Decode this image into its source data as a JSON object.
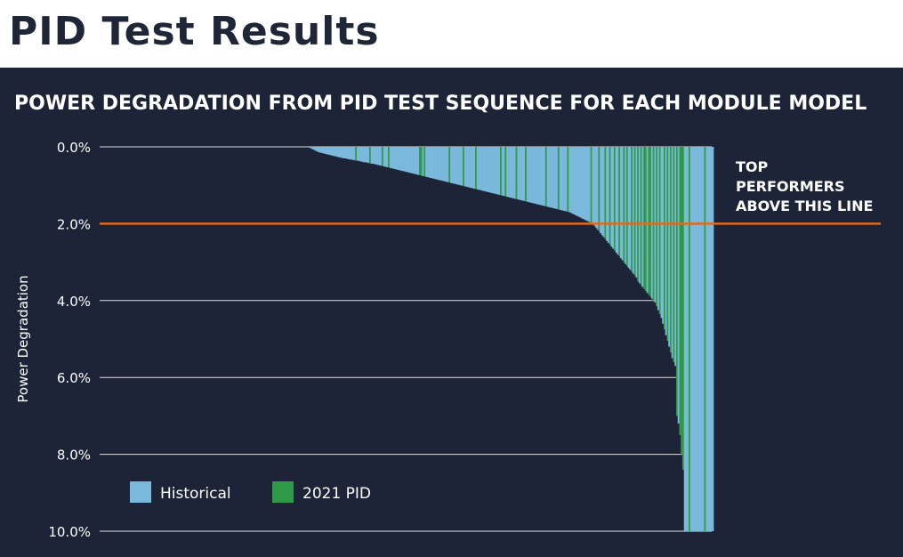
{
  "page_title": "PID Test Results",
  "colors": {
    "background": "#1d2438",
    "historical": "#7ab8dc",
    "pid2021": "#2f9a48",
    "threshold": "#e06a1d",
    "grid": "#ffffff",
    "text": "#ffffff"
  },
  "chart_data": {
    "type": "bar",
    "title": "POWER DEGRADATION FROM PID TEST SEQUENCE FOR EACH MODULE MODEL",
    "ylabel": "Power Degradation",
    "xlabel": "",
    "ylim": [
      0,
      10
    ],
    "y_inverted": true,
    "y_ticks": [
      "0.0%",
      "2.0%",
      "4.0%",
      "6.0%",
      "8.0%",
      "10.0%"
    ],
    "legend": {
      "position": "bottom-left",
      "entries": [
        "Historical",
        "2021 PID"
      ]
    },
    "threshold": {
      "value": 2.0,
      "label_lines": [
        "TOP",
        "PERFORMERS",
        "ABOVE THIS LINE"
      ]
    },
    "sorted": "ascending",
    "series": [
      {
        "name": "Historical",
        "color": "#7ab8dc"
      },
      {
        "name": "2021 PID",
        "color": "#2f9a48"
      }
    ],
    "points": [
      [
        0.0,
        0
      ],
      [
        0.0,
        0
      ],
      [
        0.0,
        0
      ],
      [
        0.0,
        0
      ],
      [
        0.0,
        0
      ],
      [
        0.0,
        0
      ],
      [
        0.0,
        0
      ],
      [
        0.0,
        0
      ],
      [
        0.0,
        0
      ],
      [
        0.0,
        0
      ],
      [
        0.0,
        0
      ],
      [
        0.0,
        0
      ],
      [
        0.0,
        0
      ],
      [
        0.0,
        0
      ],
      [
        0.0,
        0
      ],
      [
        0.0,
        0
      ],
      [
        0.0,
        0
      ],
      [
        0.0,
        0
      ],
      [
        0.0,
        0
      ],
      [
        0.0,
        0
      ],
      [
        0.0,
        0
      ],
      [
        0.0,
        0
      ],
      [
        0.0,
        0
      ],
      [
        0.0,
        0
      ],
      [
        0.0,
        0
      ],
      [
        0.0,
        0
      ],
      [
        0.0,
        0
      ],
      [
        0.0,
        0
      ],
      [
        0.0,
        0
      ],
      [
        0.0,
        0
      ],
      [
        0.0,
        0
      ],
      [
        0.0,
        0
      ],
      [
        0.0,
        0
      ],
      [
        0.0,
        0
      ],
      [
        0.0,
        0
      ],
      [
        0.0,
        0
      ],
      [
        0.0,
        0
      ],
      [
        0.0,
        0
      ],
      [
        0.0,
        0
      ],
      [
        0.0,
        0
      ],
      [
        0.0,
        0
      ],
      [
        0.0,
        0
      ],
      [
        0.0,
        0
      ],
      [
        0.0,
        0
      ],
      [
        0.0,
        0
      ],
      [
        0.0,
        0
      ],
      [
        0.0,
        0
      ],
      [
        0.0,
        0
      ],
      [
        0.0,
        0
      ],
      [
        0.0,
        0
      ],
      [
        0.0,
        0
      ],
      [
        0.0,
        0
      ],
      [
        0.0,
        0
      ],
      [
        0.0,
        0
      ],
      [
        0.0,
        0
      ],
      [
        0.0,
        0
      ],
      [
        0.0,
        0
      ],
      [
        0.0,
        0
      ],
      [
        0.0,
        0
      ],
      [
        0.0,
        0
      ],
      [
        0.0,
        0
      ],
      [
        0.0,
        0
      ],
      [
        0.0,
        0
      ],
      [
        0.0,
        0
      ],
      [
        0.0,
        0
      ],
      [
        0.0,
        0
      ],
      [
        0.0,
        0
      ],
      [
        0.0,
        0
      ],
      [
        0.0,
        0
      ],
      [
        0.0,
        0
      ],
      [
        0.0,
        0
      ],
      [
        0.0,
        0
      ],
      [
        0.0,
        0
      ],
      [
        0.0,
        0
      ],
      [
        0.0,
        0
      ],
      [
        0.0,
        0
      ],
      [
        0.0,
        0
      ],
      [
        0.0,
        0
      ],
      [
        0.0,
        0
      ],
      [
        0.0,
        0
      ],
      [
        0.0,
        0
      ],
      [
        0.0,
        0
      ],
      [
        0.0,
        0
      ],
      [
        0.0,
        0
      ],
      [
        0.0,
        0
      ],
      [
        0.0,
        0
      ],
      [
        0.0,
        0
      ],
      [
        0.0,
        0
      ],
      [
        0.0,
        0
      ],
      [
        0.0,
        0
      ],
      [
        0.0,
        0
      ],
      [
        0.0,
        0
      ],
      [
        0.0,
        0
      ],
      [
        0.0,
        0
      ],
      [
        0.0,
        0
      ],
      [
        0.0,
        0
      ],
      [
        0.0,
        0
      ],
      [
        0.0,
        0
      ],
      [
        0.0,
        0
      ],
      [
        0.0,
        0
      ],
      [
        0.0,
        0
      ],
      [
        0.0,
        0
      ],
      [
        0.0,
        0
      ],
      [
        0.0,
        0
      ],
      [
        0.0,
        0
      ],
      [
        0.0,
        0
      ],
      [
        0.0,
        0
      ],
      [
        0.0,
        0
      ],
      [
        0.0,
        0
      ],
      [
        0.0,
        0
      ],
      [
        0.0,
        0
      ],
      [
        0.0,
        0
      ],
      [
        0.0,
        0
      ],
      [
        0.0,
        0
      ],
      [
        0.0,
        0
      ],
      [
        0.0,
        0
      ],
      [
        0.0,
        0
      ],
      [
        0.0,
        0
      ],
      [
        0.0,
        0
      ],
      [
        0.0,
        0
      ],
      [
        0.0,
        0
      ],
      [
        0.0,
        0
      ],
      [
        0.0,
        0
      ],
      [
        0.0,
        0
      ],
      [
        0.0,
        0
      ],
      [
        0.0,
        0
      ],
      [
        0.0,
        0
      ],
      [
        0.0,
        0
      ],
      [
        0.0,
        0
      ],
      [
        0.0,
        0
      ],
      [
        0.0,
        0
      ],
      [
        0.0,
        0
      ],
      [
        0.0,
        0
      ],
      [
        0.0,
        0
      ],
      [
        0.02,
        0
      ],
      [
        0.04,
        0
      ],
      [
        0.06,
        0
      ],
      [
        0.08,
        0
      ],
      [
        0.1,
        0
      ],
      [
        0.12,
        0
      ],
      [
        0.14,
        0
      ],
      [
        0.15,
        0
      ],
      [
        0.16,
        0
      ],
      [
        0.17,
        0
      ],
      [
        0.18,
        0
      ],
      [
        0.19,
        0
      ],
      [
        0.2,
        0
      ],
      [
        0.21,
        0
      ],
      [
        0.22,
        0
      ],
      [
        0.23,
        0
      ],
      [
        0.24,
        0
      ],
      [
        0.25,
        0
      ],
      [
        0.26,
        0
      ],
      [
        0.27,
        0
      ],
      [
        0.28,
        0
      ],
      [
        0.29,
        0
      ],
      [
        0.3,
        0
      ],
      [
        0.3,
        0
      ],
      [
        0.31,
        0
      ],
      [
        0.32,
        0
      ],
      [
        0.33,
        0
      ],
      [
        0.33,
        0
      ],
      [
        0.34,
        0
      ],
      [
        0.35,
        0
      ],
      [
        0.36,
        1
      ],
      [
        0.36,
        0
      ],
      [
        0.37,
        0
      ],
      [
        0.38,
        0
      ],
      [
        0.39,
        0
      ],
      [
        0.4,
        0
      ],
      [
        0.4,
        0
      ],
      [
        0.41,
        0
      ],
      [
        0.42,
        0
      ],
      [
        0.43,
        1
      ],
      [
        0.44,
        0
      ],
      [
        0.44,
        0
      ],
      [
        0.45,
        0
      ],
      [
        0.46,
        0
      ],
      [
        0.47,
        0
      ],
      [
        0.48,
        0
      ],
      [
        0.49,
        0
      ],
      [
        0.5,
        1
      ],
      [
        0.51,
        0
      ],
      [
        0.52,
        0
      ],
      [
        0.53,
        0
      ],
      [
        0.54,
        1
      ],
      [
        0.55,
        0
      ],
      [
        0.56,
        0
      ],
      [
        0.57,
        0
      ],
      [
        0.58,
        0
      ],
      [
        0.59,
        0
      ],
      [
        0.6,
        0
      ],
      [
        0.61,
        0
      ],
      [
        0.62,
        0
      ],
      [
        0.63,
        0
      ],
      [
        0.64,
        0
      ],
      [
        0.65,
        0
      ],
      [
        0.66,
        0
      ],
      [
        0.67,
        0
      ],
      [
        0.68,
        0
      ],
      [
        0.69,
        0
      ],
      [
        0.7,
        0
      ],
      [
        0.71,
        0
      ],
      [
        0.72,
        0
      ],
      [
        0.73,
        0
      ],
      [
        0.74,
        1
      ],
      [
        0.75,
        1
      ],
      [
        0.76,
        0
      ],
      [
        0.77,
        1
      ],
      [
        0.78,
        0
      ],
      [
        0.79,
        0
      ],
      [
        0.8,
        0
      ],
      [
        0.81,
        0
      ],
      [
        0.82,
        0
      ],
      [
        0.83,
        0
      ],
      [
        0.84,
        0
      ],
      [
        0.85,
        0
      ],
      [
        0.86,
        0
      ],
      [
        0.87,
        0
      ],
      [
        0.88,
        0
      ],
      [
        0.89,
        0
      ],
      [
        0.9,
        0
      ],
      [
        0.91,
        0
      ],
      [
        0.92,
        0
      ],
      [
        0.93,
        1
      ],
      [
        0.94,
        0
      ],
      [
        0.95,
        0
      ],
      [
        0.96,
        0
      ],
      [
        0.97,
        0
      ],
      [
        0.98,
        0
      ],
      [
        0.99,
        0
      ],
      [
        1.0,
        0
      ],
      [
        1.01,
        0
      ],
      [
        1.02,
        1
      ],
      [
        1.03,
        0
      ],
      [
        1.04,
        0
      ],
      [
        1.05,
        0
      ],
      [
        1.06,
        0
      ],
      [
        1.07,
        0
      ],
      [
        1.08,
        0
      ],
      [
        1.09,
        0
      ],
      [
        1.1,
        1
      ],
      [
        1.11,
        0
      ],
      [
        1.12,
        0
      ],
      [
        1.13,
        0
      ],
      [
        1.14,
        0
      ],
      [
        1.15,
        0
      ],
      [
        1.16,
        0
      ],
      [
        1.17,
        0
      ],
      [
        1.18,
        0
      ],
      [
        1.19,
        0
      ],
      [
        1.2,
        0
      ],
      [
        1.21,
        0
      ],
      [
        1.22,
        0
      ],
      [
        1.23,
        0
      ],
      [
        1.24,
        0
      ],
      [
        1.25,
        0
      ],
      [
        1.26,
        1
      ],
      [
        1.27,
        0
      ],
      [
        1.28,
        0
      ],
      [
        1.29,
        1
      ],
      [
        1.3,
        0
      ],
      [
        1.31,
        0
      ],
      [
        1.32,
        0
      ],
      [
        1.33,
        0
      ],
      [
        1.34,
        0
      ],
      [
        1.35,
        0
      ],
      [
        1.36,
        1
      ],
      [
        1.37,
        0
      ],
      [
        1.38,
        0
      ],
      [
        1.39,
        0
      ],
      [
        1.4,
        0
      ],
      [
        1.41,
        0
      ],
      [
        1.42,
        1
      ],
      [
        1.43,
        0
      ],
      [
        1.44,
        0
      ],
      [
        1.45,
        0
      ],
      [
        1.46,
        0
      ],
      [
        1.47,
        0
      ],
      [
        1.48,
        0
      ],
      [
        1.49,
        0
      ],
      [
        1.5,
        0
      ],
      [
        1.51,
        0
      ],
      [
        1.52,
        0
      ],
      [
        1.53,
        0
      ],
      [
        1.54,
        0
      ],
      [
        1.55,
        1
      ],
      [
        1.56,
        0
      ],
      [
        1.57,
        0
      ],
      [
        1.58,
        0
      ],
      [
        1.59,
        0
      ],
      [
        1.6,
        0
      ],
      [
        1.61,
        0
      ],
      [
        1.62,
        0
      ],
      [
        1.63,
        1
      ],
      [
        1.64,
        0
      ],
      [
        1.65,
        0
      ],
      [
        1.66,
        0
      ],
      [
        1.67,
        0
      ],
      [
        1.68,
        0
      ],
      [
        1.69,
        1
      ],
      [
        1.7,
        0
      ],
      [
        1.72,
        0
      ],
      [
        1.74,
        0
      ],
      [
        1.76,
        0
      ],
      [
        1.78,
        0
      ],
      [
        1.8,
        0
      ],
      [
        1.82,
        0
      ],
      [
        1.84,
        0
      ],
      [
        1.86,
        0
      ],
      [
        1.88,
        0
      ],
      [
        1.9,
        0
      ],
      [
        1.92,
        0
      ],
      [
        1.94,
        0
      ],
      [
        1.96,
        0
      ],
      [
        1.98,
        1
      ],
      [
        2.0,
        0
      ],
      [
        2.05,
        0
      ],
      [
        2.1,
        0
      ],
      [
        2.15,
        0
      ],
      [
        2.2,
        1
      ],
      [
        2.25,
        0
      ],
      [
        2.3,
        0
      ],
      [
        2.35,
        0
      ],
      [
        2.4,
        1
      ],
      [
        2.45,
        0
      ],
      [
        2.5,
        0
      ],
      [
        2.55,
        1
      ],
      [
        2.6,
        0
      ],
      [
        2.65,
        0
      ],
      [
        2.7,
        1
      ],
      [
        2.75,
        0
      ],
      [
        2.8,
        0
      ],
      [
        2.85,
        1
      ],
      [
        2.9,
        0
      ],
      [
        2.95,
        0
      ],
      [
        3.0,
        1
      ],
      [
        3.05,
        0
      ],
      [
        3.1,
        1
      ],
      [
        3.15,
        0
      ],
      [
        3.2,
        0
      ],
      [
        3.25,
        1
      ],
      [
        3.3,
        0
      ],
      [
        3.35,
        1
      ],
      [
        3.4,
        0
      ],
      [
        3.5,
        1
      ],
      [
        3.55,
        0
      ],
      [
        3.6,
        1
      ],
      [
        3.65,
        0
      ],
      [
        3.7,
        1
      ],
      [
        3.75,
        1
      ],
      [
        3.8,
        0
      ],
      [
        3.85,
        1
      ],
      [
        3.9,
        1
      ],
      [
        3.95,
        0
      ],
      [
        4.0,
        1
      ],
      [
        4.05,
        0
      ],
      [
        4.15,
        1
      ],
      [
        4.25,
        0
      ],
      [
        4.35,
        1
      ],
      [
        4.45,
        0
      ],
      [
        4.6,
        0
      ],
      [
        4.75,
        1
      ],
      [
        4.9,
        0
      ],
      [
        5.05,
        1
      ],
      [
        5.2,
        0
      ],
      [
        5.35,
        1
      ],
      [
        5.5,
        0
      ],
      [
        5.6,
        1
      ],
      [
        5.7,
        0
      ],
      [
        7.0,
        1
      ],
      [
        7.2,
        0
      ],
      [
        7.5,
        1
      ],
      [
        8.0,
        1
      ],
      [
        8.4,
        1
      ],
      [
        10.0,
        0
      ],
      [
        10.0,
        0
      ],
      [
        10.0,
        0
      ],
      [
        10.0,
        1
      ],
      [
        10.0,
        0
      ],
      [
        10.0,
        0
      ],
      [
        10.0,
        0
      ],
      [
        10.0,
        0
      ],
      [
        10.0,
        0
      ],
      [
        10.0,
        0
      ],
      [
        10.0,
        0
      ],
      [
        10.0,
        0
      ],
      [
        10.0,
        0
      ],
      [
        10.0,
        1
      ],
      [
        10.0,
        0
      ],
      [
        10.0,
        0
      ],
      [
        10.0,
        0
      ],
      [
        10.0,
        0
      ],
      [
        10.0,
        0
      ]
    ]
  }
}
